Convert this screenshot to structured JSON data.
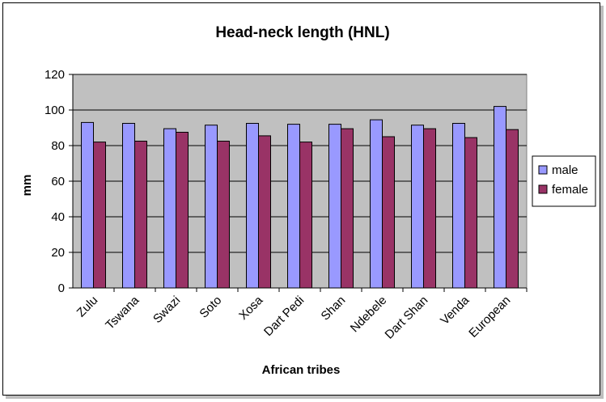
{
  "chart_data": {
    "type": "bar",
    "title": "Head-neck length (HNL)",
    "xlabel": "African tribes",
    "ylabel": "mm",
    "ylim": [
      0,
      120
    ],
    "yticks": [
      0,
      20,
      40,
      60,
      80,
      100,
      120
    ],
    "grid": true,
    "legend_position": "right",
    "plot_background": "#c0c0c0",
    "categories": [
      "Zulu",
      "Tswana",
      "Swazi",
      "Soto",
      "Xosa",
      "Dart Pedi",
      "Shan",
      "Ndebele",
      "Dart Shan",
      "Venda",
      "European"
    ],
    "series": [
      {
        "name": "male",
        "color": "#9999ff",
        "values": [
          93,
          92.5,
          89.5,
          91.5,
          92.5,
          92,
          92,
          94.5,
          91.5,
          92.5,
          102
        ]
      },
      {
        "name": "female",
        "color": "#993366",
        "values": [
          82,
          82.5,
          87.5,
          82.5,
          85.5,
          82,
          89.5,
          85,
          89.5,
          84.5,
          89
        ]
      }
    ]
  }
}
